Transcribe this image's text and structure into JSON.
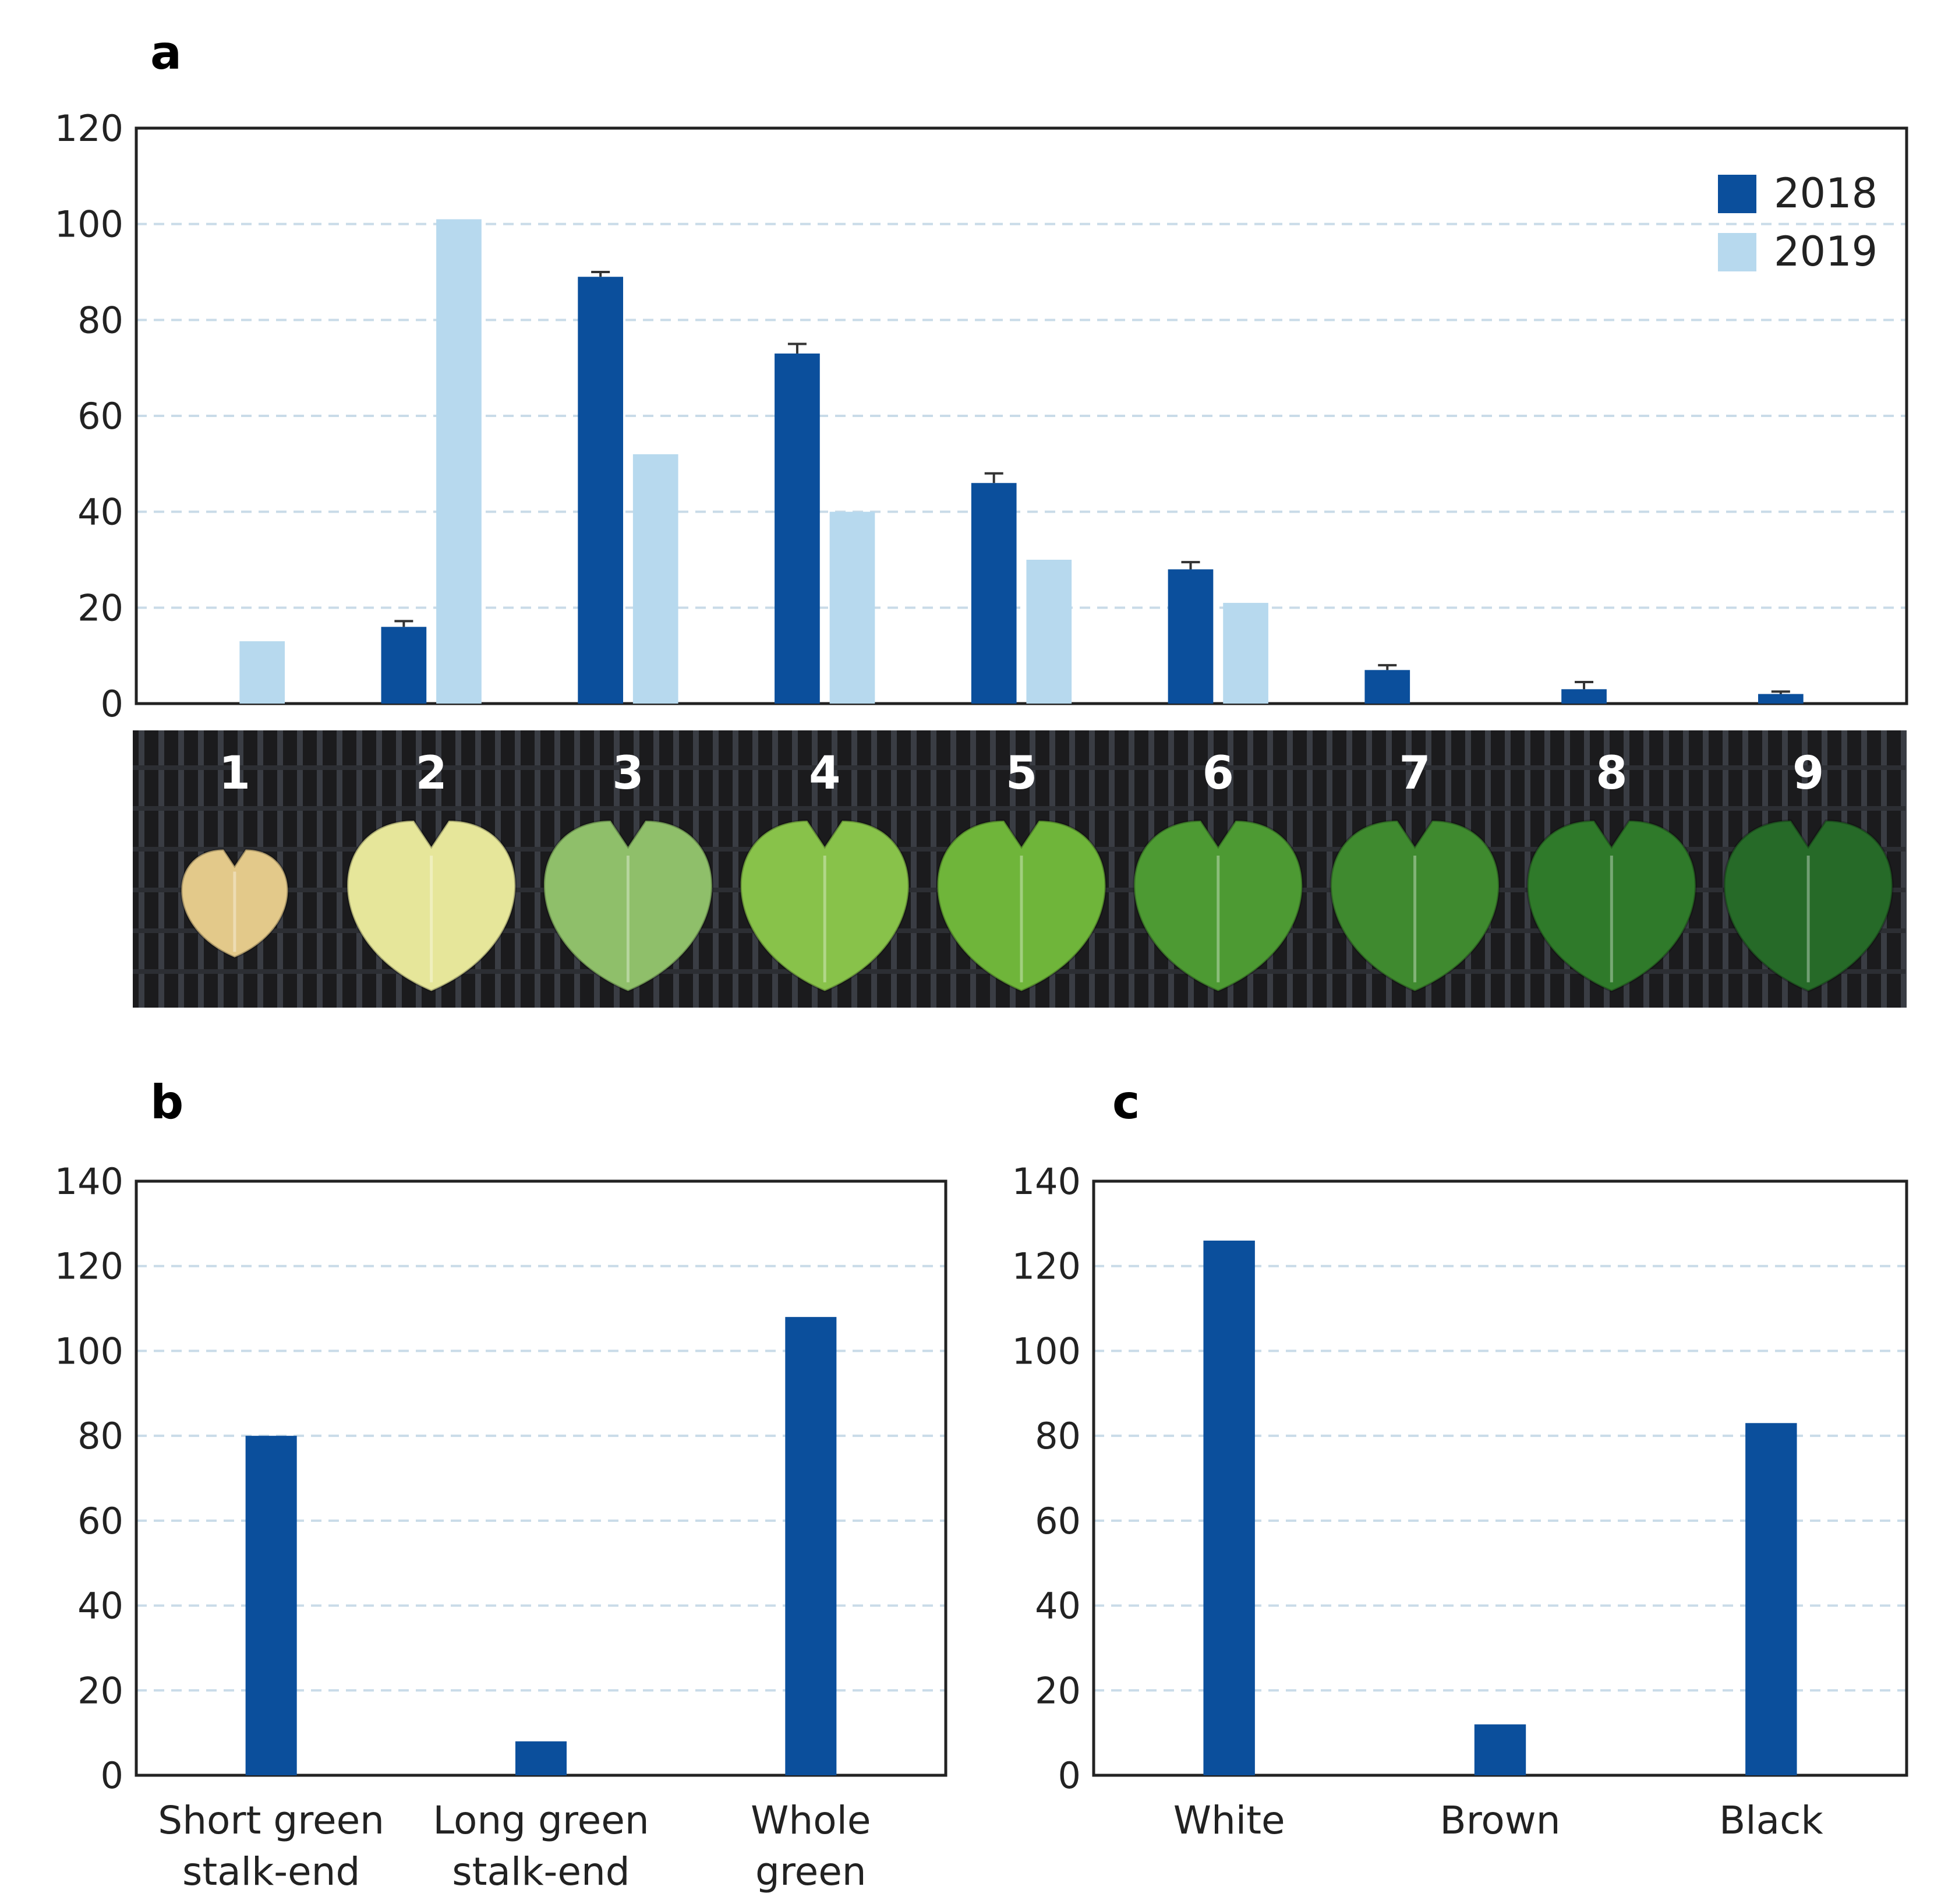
{
  "colors": {
    "series2018": "#0b4f9c",
    "series2019": "#b7d9ee",
    "grid": "#c9dbe8",
    "axis": "#222222"
  },
  "panels": {
    "a": "a",
    "b": "b",
    "c": "c"
  },
  "chart_data": [
    {
      "panel": "a",
      "type": "bar",
      "categories": [
        "1",
        "2",
        "3",
        "4",
        "5",
        "6",
        "7",
        "8",
        "9"
      ],
      "series": [
        {
          "name": "2018",
          "values": [
            0,
            16,
            89,
            73,
            46,
            28,
            7,
            3,
            2
          ],
          "errors": [
            0,
            1.2,
            1.0,
            2.0,
            2.0,
            1.5,
            1.0,
            1.5,
            0.5
          ]
        },
        {
          "name": "2019",
          "values": [
            13,
            101,
            52,
            40,
            30,
            21,
            0,
            0,
            0
          ]
        }
      ],
      "ylim": [
        0,
        120
      ],
      "yticks": [
        0,
        20,
        40,
        60,
        80,
        100,
        120
      ],
      "legend": [
        "2018",
        "2019"
      ],
      "legend_position": "top-right",
      "image_strip": {
        "labels": [
          "1",
          "2",
          "3",
          "4",
          "5",
          "6",
          "7",
          "8",
          "9"
        ],
        "leaf_colors": [
          "#e3c98a",
          "#e6e69a",
          "#8fbf6a",
          "#88c24a",
          "#6fb53a",
          "#4d9a33",
          "#3f8a2f",
          "#2f7a2a",
          "#266a28"
        ]
      }
    },
    {
      "panel": "b",
      "type": "bar",
      "categories": [
        "Short green stalk-end",
        "Long green stalk-end",
        "Whole green"
      ],
      "category_lines": [
        [
          "Short green",
          "stalk-end"
        ],
        [
          "Long green",
          "stalk-end"
        ],
        [
          "Whole",
          "green"
        ]
      ],
      "values": [
        80,
        8,
        108
      ],
      "ylim": [
        0,
        140
      ],
      "yticks": [
        0,
        20,
        40,
        60,
        80,
        100,
        120,
        140
      ]
    },
    {
      "panel": "c",
      "type": "bar",
      "categories": [
        "White",
        "Brown",
        "Black"
      ],
      "category_lines": [
        [
          "White"
        ],
        [
          "Brown"
        ],
        [
          "Black"
        ]
      ],
      "values": [
        126,
        12,
        83
      ],
      "ylim": [
        0,
        140
      ],
      "yticks": [
        0,
        20,
        40,
        60,
        80,
        100,
        120,
        140
      ]
    }
  ]
}
